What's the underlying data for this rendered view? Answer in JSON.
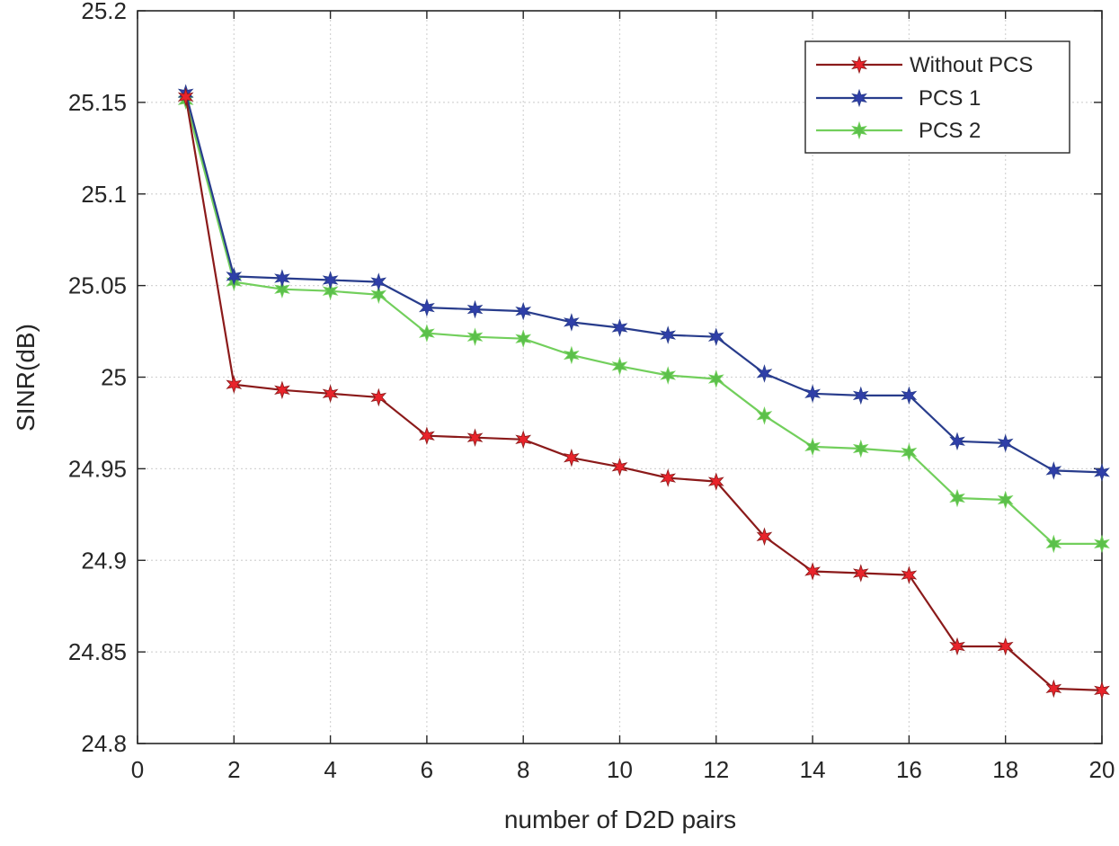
{
  "chart_data": {
    "type": "line",
    "title": "",
    "xlabel": "number of D2D pairs",
    "ylabel": "SINR(dB)",
    "xlim": [
      0,
      20
    ],
    "ylim": [
      24.8,
      25.2
    ],
    "xticks": [
      0,
      2,
      4,
      6,
      8,
      10,
      12,
      14,
      16,
      18,
      20
    ],
    "xtick_labels": [
      "0",
      "2",
      "4",
      "6",
      "8",
      "10",
      "12",
      "14",
      "16",
      "18",
      "20"
    ],
    "yticks": [
      24.8,
      24.85,
      24.9,
      24.95,
      25.0,
      25.05,
      25.1,
      25.15,
      25.2
    ],
    "ytick_labels": [
      "24.8",
      "24.85",
      "24.9",
      "24.95",
      "25",
      "25.05",
      "25.1",
      "25.15",
      "25.2"
    ],
    "grid": true,
    "legend_position": "top-right",
    "x": [
      1,
      2,
      3,
      4,
      5,
      6,
      7,
      8,
      9,
      10,
      11,
      12,
      13,
      14,
      15,
      16,
      17,
      18,
      19,
      20
    ],
    "series": [
      {
        "name": "Without PCS",
        "line_color": "#8b1a1a",
        "marker_color": "#e8242b",
        "values": [
          25.153,
          24.996,
          24.993,
          24.991,
          24.989,
          24.968,
          24.967,
          24.966,
          24.956,
          24.951,
          24.945,
          24.943,
          24.913,
          24.894,
          24.893,
          24.892,
          24.853,
          24.853,
          24.83,
          24.829
        ]
      },
      {
        "name": "PCS 1",
        "line_color": "#283c8c",
        "marker_color": "#2f3fa8",
        "values": [
          25.155,
          25.055,
          25.054,
          25.053,
          25.052,
          25.038,
          25.037,
          25.036,
          25.03,
          25.027,
          25.023,
          25.022,
          25.002,
          24.991,
          24.99,
          24.99,
          24.965,
          24.964,
          24.949,
          24.948
        ]
      },
      {
        "name": "PCS 2",
        "line_color": "#72cf5c",
        "marker_color": "#5bc04a",
        "values": [
          25.151,
          25.052,
          25.048,
          25.047,
          25.045,
          25.024,
          25.022,
          25.021,
          25.012,
          25.006,
          25.001,
          24.999,
          24.979,
          24.962,
          24.961,
          24.959,
          24.934,
          24.933,
          24.909,
          24.909
        ]
      }
    ]
  }
}
